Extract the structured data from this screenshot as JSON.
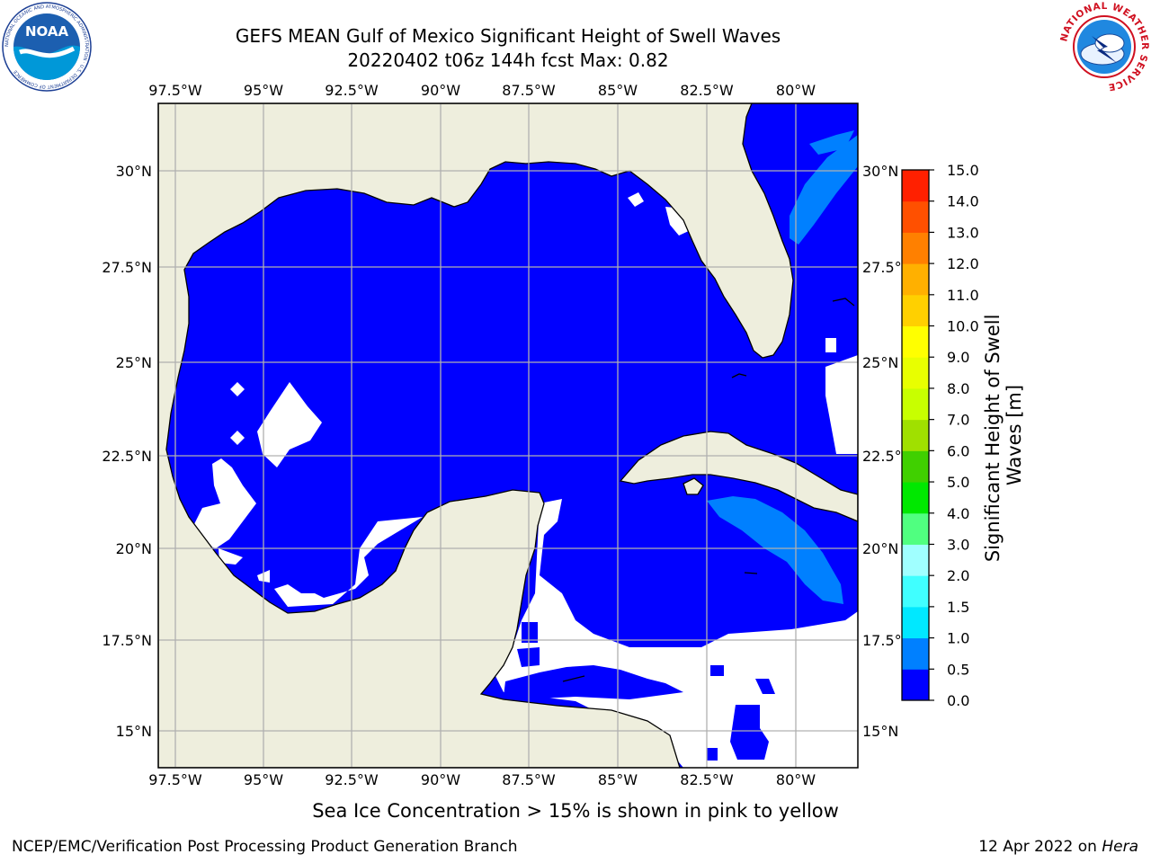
{
  "header": {
    "title_line1": "GEFS MEAN Gulf of Mexico Significant Height of Swell Waves",
    "title_line2": "20220402 t06z 144h fcst   Max: 0.82"
  },
  "logos": {
    "left": "NOAA",
    "left_ring_text": "NATIONAL OCEANIC AND ATMOSPHERIC ADMINISTRATION · U.S. DEPARTMENT OF COMMERCE",
    "right_ring_text": "NATIONAL WEATHER SERVICE"
  },
  "map": {
    "lon_labels": [
      "97.5°W",
      "95°W",
      "92.5°W",
      "90°W",
      "87.5°W",
      "85°W",
      "82.5°W",
      "80°W"
    ],
    "lat_labels": [
      "30°N",
      "27.5°N",
      "25°N",
      "22.5°N",
      "20°N",
      "17.5°N",
      "15°N"
    ],
    "extent": {
      "lon_min": -98.0,
      "lon_max": -78.3,
      "lat_min": 14.0,
      "lat_max": 31.9
    },
    "colors": {
      "land": "#eeeedd",
      "sea_low": "#0000ff",
      "sea_mid": "#0080ff",
      "no_data": "#ffffff",
      "grid": "#b0b0b0"
    }
  },
  "colorbar": {
    "label": "Significant Height of Swell Waves [m]",
    "tick_labels": [
      "0.0",
      "0.5",
      "1.0",
      "1.5",
      "2.0",
      "3.0",
      "4.0",
      "5.0",
      "6.0",
      "7.0",
      "8.0",
      "9.0",
      "10.0",
      "11.0",
      "12.0",
      "13.0",
      "14.0",
      "15.0"
    ],
    "colors": [
      "#0000ff",
      "#0080ff",
      "#00e8ff",
      "#40ffff",
      "#a0ffff",
      "#50ff80",
      "#00e800",
      "#40d000",
      "#a0e000",
      "#c8ff00",
      "#e8ff00",
      "#ffff00",
      "#ffd000",
      "#ffb000",
      "#ff8000",
      "#ff5000",
      "#ff2000"
    ]
  },
  "footer": {
    "note": "Sea Ice Concentration > 15% is shown in pink to yellow",
    "credit": "NCEP/EMC/Verification Post Processing Product Generation Branch",
    "date_prefix": "12 Apr 2022 on",
    "host": "Hera"
  }
}
